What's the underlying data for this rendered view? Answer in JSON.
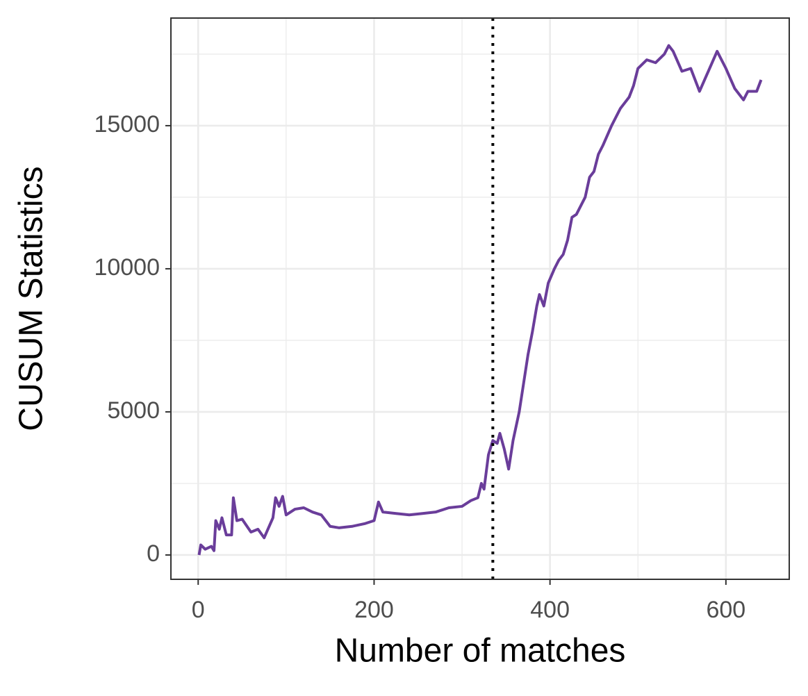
{
  "chart_data": {
    "type": "line",
    "xlabel": "Number of matches",
    "ylabel": "CUSUM Statistics",
    "x": [
      1,
      3,
      8,
      15,
      18,
      20,
      24,
      27,
      32,
      38,
      40,
      44,
      50,
      60,
      68,
      75,
      85,
      88,
      92,
      96,
      100,
      110,
      120,
      130,
      140,
      150,
      160,
      175,
      190,
      200,
      205,
      210,
      225,
      240,
      255,
      270,
      285,
      300,
      310,
      318,
      322,
      325,
      330,
      335,
      340,
      343,
      348,
      353,
      358,
      365,
      370,
      375,
      380,
      385,
      388,
      393,
      398,
      405,
      410,
      415,
      420,
      425,
      430,
      440,
      445,
      450,
      455,
      460,
      470,
      480,
      490,
      495,
      500,
      510,
      520,
      530,
      535,
      540,
      550,
      560,
      570,
      580,
      590,
      600,
      610,
      620,
      625,
      635,
      640
    ],
    "values": [
      0,
      350,
      200,
      300,
      150,
      1200,
      900,
      1300,
      700,
      700,
      2000,
      1200,
      1250,
      800,
      900,
      600,
      1300,
      2000,
      1700,
      2050,
      1400,
      1600,
      1650,
      1500,
      1400,
      1000,
      950,
      1000,
      1100,
      1200,
      1850,
      1500,
      1450,
      1400,
      1450,
      1500,
      1650,
      1700,
      1900,
      2000,
      2500,
      2300,
      3500,
      4000,
      3900,
      4250,
      3700,
      3000,
      4000,
      5000,
      6000,
      7000,
      7800,
      8700,
      9100,
      8700,
      9500,
      10000,
      10300,
      10500,
      11000,
      11800,
      11900,
      12500,
      13200,
      13400,
      14000,
      14300,
      15000,
      15600,
      16000,
      16400,
      17000,
      17300,
      17200,
      17500,
      17800,
      17600,
      16900,
      17000,
      16200,
      16900,
      17600,
      17000,
      16300,
      15900,
      16200,
      16200,
      16600
    ],
    "color": "#6a3d9a",
    "xlim": [
      -31,
      672
    ],
    "ylim": [
      -850,
      18760
    ],
    "xticks": [
      0,
      200,
      400,
      600
    ],
    "yticks": [
      0,
      5000,
      10000,
      15000
    ],
    "xminor": [
      100,
      300,
      500
    ],
    "yminor": [
      2500,
      7500,
      12500,
      17500
    ],
    "vline": 335,
    "grid": true
  }
}
